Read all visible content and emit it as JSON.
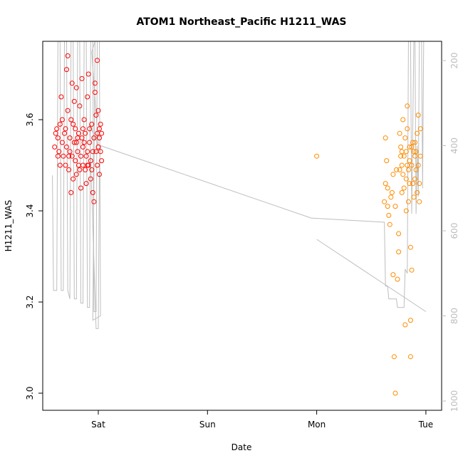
{
  "chart_data": {
    "type": "scatter",
    "title": "ATOM1 Northeast_Pacific H1211_WAS",
    "xlabel": "Date",
    "ylabel": "H1211_WAS",
    "x_is_time": true,
    "xlim": [
      -0.5,
      3.0
    ],
    "ylim": [
      2.97,
      3.77
    ],
    "x_ticks": [
      {
        "value": 0,
        "label": "Sat"
      },
      {
        "value": 1,
        "label": "Sun"
      },
      {
        "value": 2,
        "label": "Mon"
      },
      {
        "value": 3,
        "label": "Tue"
      }
    ],
    "y_ticks": [
      {
        "value": 3.0,
        "label": "3.0"
      },
      {
        "value": 3.2,
        "label": "3.2"
      },
      {
        "value": 3.4,
        "label": "3.4"
      },
      {
        "value": 3.6,
        "label": "3.6"
      }
    ],
    "y2_ticks": [
      {
        "value": 200,
        "label": "200"
      },
      {
        "value": 400,
        "label": "400"
      },
      {
        "value": 600,
        "label": "600"
      },
      {
        "value": 800,
        "label": "800"
      },
      {
        "value": 1000,
        "label": "1000"
      }
    ],
    "y2_range_top_to_bottom": [
      155,
      1010
    ],
    "colors": {
      "series_1": "#ff0000",
      "series_2": "#ff8c00",
      "pressure": "#bebebe",
      "axis": "#000000",
      "right_axis": "#bdbdbd"
    },
    "series": [
      {
        "marker": "circle-open",
        "color": "#ff0000",
        "points": [
          [
            -0.4,
            3.54
          ],
          [
            -0.39,
            3.57
          ],
          [
            -0.38,
            3.58
          ],
          [
            -0.37,
            3.56
          ],
          [
            -0.36,
            3.53
          ],
          [
            -0.35,
            3.59
          ],
          [
            -0.34,
            3.65
          ],
          [
            -0.33,
            3.55
          ],
          [
            -0.32,
            3.52
          ],
          [
            -0.31,
            3.57
          ],
          [
            -0.3,
            3.5
          ],
          [
            -0.3,
            3.58
          ],
          [
            -0.29,
            3.71
          ],
          [
            -0.29,
            3.54
          ],
          [
            -0.28,
            3.74
          ],
          [
            -0.28,
            3.62
          ],
          [
            -0.27,
            3.49
          ],
          [
            -0.26,
            3.56
          ],
          [
            -0.26,
            3.53
          ],
          [
            -0.25,
            3.6
          ],
          [
            -0.25,
            3.44
          ],
          [
            -0.24,
            3.68
          ],
          [
            -0.24,
            3.52
          ],
          [
            -0.23,
            3.47
          ],
          [
            -0.22,
            3.55
          ],
          [
            -0.22,
            3.64
          ],
          [
            -0.21,
            3.51
          ],
          [
            -0.21,
            3.58
          ],
          [
            -0.2,
            3.67
          ],
          [
            -0.2,
            3.48
          ],
          [
            -0.19,
            3.53
          ],
          [
            -0.18,
            3.57
          ],
          [
            -0.18,
            3.5
          ],
          [
            -0.17,
            3.63
          ],
          [
            -0.16,
            3.52
          ],
          [
            -0.16,
            3.45
          ],
          [
            -0.15,
            3.56
          ],
          [
            -0.15,
            3.69
          ],
          [
            -0.14,
            3.5
          ],
          [
            -0.14,
            3.54
          ],
          [
            -0.13,
            3.6
          ],
          [
            -0.12,
            3.49
          ],
          [
            -0.12,
            3.57
          ],
          [
            -0.11,
            3.52
          ],
          [
            -0.1,
            3.65
          ],
          [
            -0.1,
            3.53
          ],
          [
            -0.09,
            3.5
          ],
          [
            -0.08,
            3.58
          ],
          [
            -0.08,
            3.55
          ],
          [
            -0.07,
            3.47
          ],
          [
            -0.07,
            3.51
          ],
          [
            -0.06,
            3.59
          ],
          [
            -0.05,
            3.53
          ],
          [
            -0.05,
            3.44
          ],
          [
            -0.04,
            3.42
          ],
          [
            -0.04,
            3.56
          ],
          [
            -0.03,
            3.66
          ],
          [
            -0.03,
            3.68
          ],
          [
            -0.02,
            3.61
          ],
          [
            -0.02,
            3.53
          ],
          [
            -0.01,
            3.57
          ],
          [
            -0.01,
            3.5
          ],
          [
            0,
            3.54
          ],
          [
            0,
            3.62
          ],
          [
            0.01,
            3.56
          ],
          [
            0.01,
            3.48
          ],
          [
            0.02,
            3.59
          ],
          [
            0.02,
            3.53
          ],
          [
            0.03,
            3.57
          ],
          [
            0.03,
            3.51
          ],
          [
            -0.01,
            3.73
          ],
          [
            0.01,
            3.58
          ],
          [
            -0.09,
            3.7
          ],
          [
            -0.11,
            3.46
          ],
          [
            -0.13,
            3.55
          ],
          [
            -0.17,
            3.49
          ],
          [
            -0.19,
            3.56
          ],
          [
            -0.23,
            3.59
          ],
          [
            -0.27,
            3.52
          ],
          [
            -0.33,
            3.6
          ],
          [
            -0.35,
            3.5
          ],
          [
            -0.37,
            3.52
          ],
          [
            -0.06,
            3.49
          ],
          [
            -0.1,
            3.5
          ],
          [
            -0.14,
            3.58
          ],
          [
            -0.2,
            3.55
          ]
        ]
      },
      {
        "marker": "circle-open",
        "color": "#ff8c00",
        "points": [
          [
            2.0,
            3.52
          ],
          [
            2.62,
            3.42
          ],
          [
            2.63,
            3.46
          ],
          [
            2.63,
            3.56
          ],
          [
            2.64,
            3.51
          ],
          [
            2.65,
            3.41
          ],
          [
            2.65,
            3.45
          ],
          [
            2.66,
            3.39
          ],
          [
            2.67,
            3.37
          ],
          [
            2.68,
            3.43
          ],
          [
            2.69,
            3.44
          ],
          [
            2.7,
            3.48
          ],
          [
            2.7,
            3.26
          ],
          [
            2.71,
            3.08
          ],
          [
            2.72,
            3.41
          ],
          [
            2.73,
            3.49
          ],
          [
            2.74,
            3.25
          ],
          [
            2.75,
            3.31
          ],
          [
            2.75,
            3.35
          ],
          [
            2.76,
            3.57
          ],
          [
            2.77,
            3.54
          ],
          [
            2.78,
            3.5
          ],
          [
            2.78,
            3.44
          ],
          [
            2.79,
            3.6
          ],
          [
            2.8,
            3.52
          ],
          [
            2.8,
            3.45
          ],
          [
            2.81,
            3.15
          ],
          [
            2.82,
            3.53
          ],
          [
            2.82,
            3.47
          ],
          [
            2.83,
            3.58
          ],
          [
            2.83,
            3.63
          ],
          [
            2.84,
            3.42
          ],
          [
            2.84,
            3.49
          ],
          [
            2.85,
            3.54
          ],
          [
            2.85,
            3.51
          ],
          [
            2.86,
            3.16
          ],
          [
            2.86,
            3.08
          ],
          [
            2.86,
            3.32
          ],
          [
            2.87,
            3.27
          ],
          [
            2.87,
            3.5
          ],
          [
            2.88,
            3.55
          ],
          [
            2.88,
            3.46
          ],
          [
            2.89,
            3.43
          ],
          [
            2.9,
            3.52
          ],
          [
            2.9,
            3.47
          ],
          [
            2.91,
            3.49
          ],
          [
            2.91,
            3.53
          ],
          [
            2.92,
            3.57
          ],
          [
            2.92,
            3.44
          ],
          [
            2.93,
            3.5
          ],
          [
            2.93,
            3.61
          ],
          [
            2.94,
            3.46
          ],
          [
            2.95,
            3.58
          ],
          [
            2.95,
            3.52
          ],
          [
            2.72,
            3.0
          ],
          [
            2.77,
            3.52
          ],
          [
            2.79,
            3.48
          ],
          [
            2.81,
            3.56
          ],
          [
            2.83,
            3.5
          ],
          [
            2.85,
            3.46
          ],
          [
            2.87,
            3.54
          ],
          [
            2.89,
            3.53
          ],
          [
            2.94,
            3.42
          ],
          [
            2.82,
            3.4
          ],
          [
            2.76,
            3.49
          ],
          [
            2.9,
            3.55
          ],
          [
            2.78,
            3.53
          ]
        ]
      }
    ],
    "pressure_line": {
      "color": "#bebebe",
      "axis": "right",
      "segments": [
        [
          [
            -0.42,
            470
          ],
          [
            -0.41,
            740
          ],
          [
            -0.38,
            740
          ],
          [
            -0.37,
            150
          ],
          [
            -0.35,
            150
          ],
          [
            -0.34,
            740
          ],
          [
            -0.32,
            740
          ],
          [
            -0.31,
            150
          ],
          [
            -0.29,
            150
          ],
          [
            -0.28,
            740
          ],
          [
            -0.26,
            760
          ],
          [
            -0.25,
            150
          ],
          [
            -0.23,
            150
          ],
          [
            -0.22,
            760
          ],
          [
            -0.2,
            760
          ],
          [
            -0.19,
            150
          ],
          [
            -0.17,
            150
          ],
          [
            -0.16,
            770
          ],
          [
            -0.14,
            770
          ],
          [
            -0.13,
            150
          ],
          [
            -0.11,
            150
          ],
          [
            -0.1,
            780
          ],
          [
            -0.08,
            780
          ],
          [
            -0.07,
            150
          ],
          [
            -0.05,
            150
          ],
          [
            -0.04,
            790
          ],
          [
            -0.02,
            790
          ],
          [
            -0.01,
            150
          ],
          [
            0.01,
            150
          ],
          [
            0.02,
            800
          ],
          [
            -0.05,
            810
          ],
          [
            -0.03,
            150
          ],
          [
            -0.06,
            180
          ],
          [
            0.0,
            400
          ],
          [
            -0.08,
            350
          ],
          [
            -0.02,
            830
          ],
          [
            0.0,
            830
          ],
          [
            0.01,
            450
          ],
          [
            0.02,
            400
          ],
          [
            1.95,
            570
          ],
          [
            2.62,
            580
          ],
          [
            2.63,
            730
          ],
          [
            2.65,
            730
          ],
          [
            2.66,
            760
          ],
          [
            2.73,
            760
          ],
          [
            2.74,
            780
          ],
          [
            2.8,
            780
          ],
          [
            2.81,
            690
          ],
          [
            2.83,
            700
          ],
          [
            2.84,
            150
          ],
          [
            2.86,
            150
          ],
          [
            2.87,
            560
          ],
          [
            2.89,
            150
          ],
          [
            2.9,
            150
          ],
          [
            2.91,
            560
          ],
          [
            2.92,
            400
          ],
          [
            2.93,
            520
          ],
          [
            2.94,
            150
          ],
          [
            2.96,
            150
          ],
          [
            2.97,
            500
          ],
          [
            2.98,
            150
          ]
        ],
        [
          [
            2.0,
            620
          ],
          [
            3.0,
            790
          ]
        ]
      ]
    }
  }
}
